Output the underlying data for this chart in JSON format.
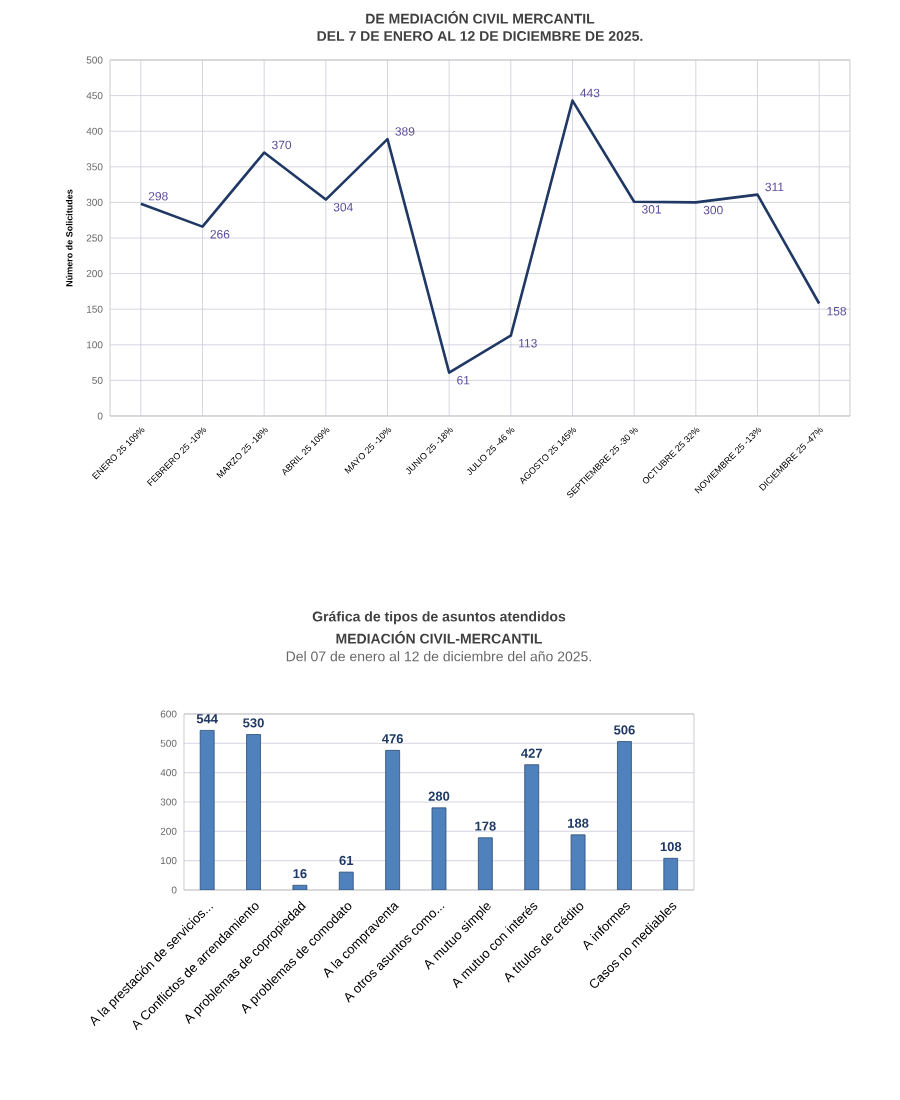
{
  "chart_data": [
    {
      "type": "line",
      "title": "DE MEDIACIÓN CIVIL MERCANTIL",
      "subtitle": "DEL 7 DE ENERO  AL  12 DE DICIEMBRE  DE 2025.",
      "ylabel": "Número de Solicitudes",
      "categories": [
        "ENERO 25  109%",
        "FEBRERO 25  -10%",
        "MARZO 25    -18%",
        "ABRIL 25  109%",
        "MAYO 25  -10%",
        "JUNIO 25   -18%",
        "JULIO 25  -46 %",
        "AGOSTO   25  145%",
        "SEPTIEMBRE  25  -30 %",
        "OCTUBRE  25   32%",
        "NOVIEMBRE  25  -13%",
        "DICIEMBRE  25  -47%"
      ],
      "values": [
        298,
        266,
        370,
        304,
        389,
        61,
        113,
        443,
        301,
        300,
        311,
        158
      ],
      "color": "#1f3864",
      "ylim": [
        0,
        500
      ],
      "yticks": [
        0,
        50,
        100,
        150,
        200,
        250,
        300,
        350,
        400,
        450,
        500
      ],
      "grid": true,
      "marker": "none",
      "data_labels": true
    },
    {
      "type": "bar",
      "title": "Gráfica de tipos de asuntos atendidos",
      "subtitle": "MEDIACIÓN CIVIL-MERCANTIL",
      "annotations": [
        "Del 07 de enero al 12 de diciembre del año 2025."
      ],
      "categories": [
        "A la prestación de servicios...",
        "A Conflictos de arrendamiento",
        "A problemas de copropiedad",
        "A problemas de comodato",
        "A la compraventa",
        "A otros asuntos como...",
        "A mutuo simple",
        "A mutuo con interés",
        "A títulos de crédito",
        "A informes",
        "Casos no mediables"
      ],
      "values": [
        544,
        530,
        16,
        61,
        476,
        280,
        178,
        427,
        188,
        506,
        108
      ],
      "color": "#4f81bd",
      "ylim": [
        0,
        600
      ],
      "yticks": [
        0,
        100,
        200,
        300,
        400,
        500,
        600
      ],
      "grid": "y",
      "data_labels": true
    }
  ]
}
